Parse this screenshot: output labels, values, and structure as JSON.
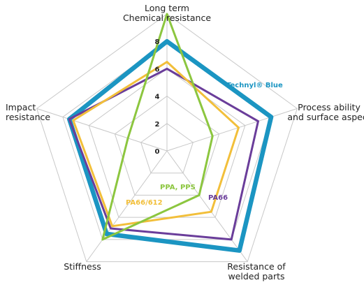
{
  "chart_data": {
    "type": "radar",
    "axes": [
      [
        "Long term",
        "Chemical resistance"
      ],
      [
        "Process ability",
        "and surface aspect"
      ],
      [
        "Resistance of",
        "welded parts"
      ],
      [
        "Stiffness"
      ],
      [
        "Impact",
        "resistance"
      ]
    ],
    "rlim": [
      0,
      10
    ],
    "ticks": [
      0,
      2,
      4,
      6,
      8
    ],
    "grid": true,
    "series": [
      {
        "name": "Technyl® Blue",
        "color": "#1b95c2",
        "values": [
          8,
          8,
          9,
          7.5,
          7.5
        ]
      },
      {
        "name": "PA66",
        "color": "#6a3d9a",
        "values": [
          6,
          7,
          8,
          7,
          7.5
        ]
      },
      {
        "name": "PA66/612",
        "color": "#f2bf3a",
        "values": [
          6.5,
          5.5,
          5.5,
          6.8,
          7.2
        ]
      },
      {
        "name": "PPA, PPS",
        "color": "#8cc63f",
        "values": [
          10,
          3.5,
          4,
          8,
          3
        ]
      }
    ]
  }
}
